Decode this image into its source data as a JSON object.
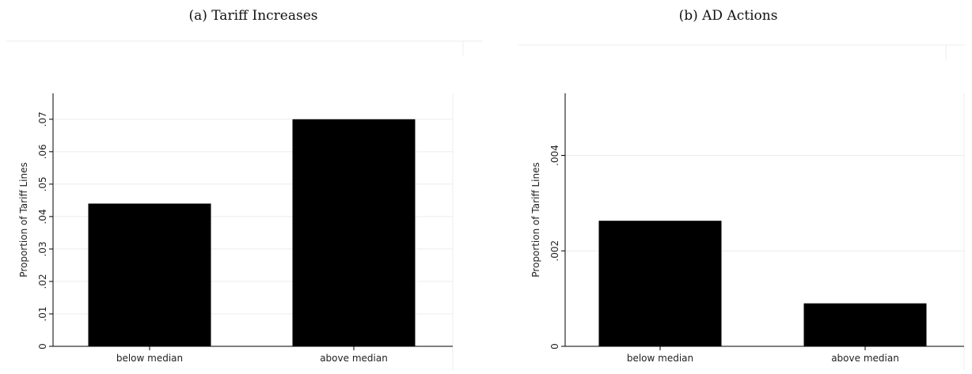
{
  "captions": {
    "a": "(a) Tariff Increases",
    "b": "(b) AD Actions"
  },
  "chart_data": [
    {
      "type": "bar",
      "title": "(a) Tariff Increases",
      "categories": [
        "below median",
        "above median"
      ],
      "values": [
        0.044,
        0.07
      ],
      "ylabel": "Proportion of Tariff Lines",
      "xlabel": "",
      "ylim": [
        0,
        0.078
      ],
      "yticks": [
        0,
        0.01,
        0.02,
        0.03,
        0.04,
        0.05,
        0.06,
        0.07
      ],
      "ytick_labels": [
        "0",
        ".01",
        ".02",
        ".03",
        ".04",
        ".05",
        ".06",
        ".07"
      ],
      "grid": true,
      "bar_color": "#000000"
    },
    {
      "type": "bar",
      "title": "(b) AD Actions",
      "categories": [
        "below median",
        "above median"
      ],
      "values": [
        0.00263,
        0.0009
      ],
      "ylabel": "Proportion of Tariff Lines",
      "xlabel": "",
      "ylim": [
        0,
        0.0053
      ],
      "yticks": [
        0,
        0.002,
        0.004
      ],
      "ytick_labels": [
        "0",
        ".002",
        ".004"
      ],
      "grid": true,
      "bar_color": "#000000"
    }
  ]
}
